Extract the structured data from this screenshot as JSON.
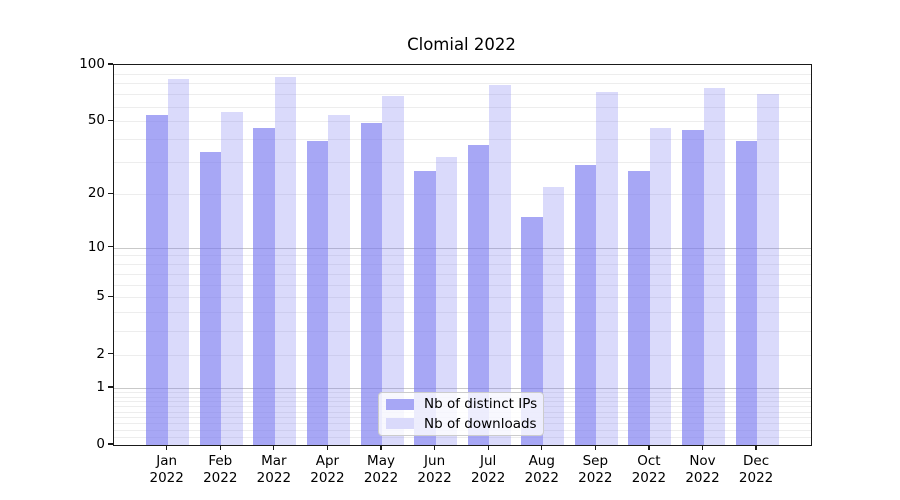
{
  "title": "Clomial 2022",
  "colors": {
    "bar_distinct_ips_solid": "#a7a7f5",
    "bar_downloads_solid": "#dadafb",
    "bar_base_rgba_dark": "rgba(120,120,240,0.65)",
    "bar_base_rgba_light": "rgba(120,120,240,0.27)",
    "grid_minor": "#ededed",
    "grid_major": "#c9c9c9",
    "axis": "#1a1a1a"
  },
  "legend": {
    "position": "lower center",
    "items": [
      {
        "label": "Nb of distinct IPs",
        "swatch": "#a7a7f5"
      },
      {
        "label": "Nb of downloads",
        "swatch": "#dadafb"
      }
    ]
  },
  "chart_data": {
    "type": "bar",
    "title": "Clomial 2022",
    "xlabel": "",
    "ylabel": "",
    "scale": "log1p",
    "ylim": [
      0,
      100
    ],
    "grid": "on",
    "categories": [
      "Jan",
      "Feb",
      "Mar",
      "Apr",
      "May",
      "Jun",
      "Jul",
      "Aug",
      "Sep",
      "Oct",
      "Nov",
      "Dec"
    ],
    "category_year": "2022",
    "series": [
      {
        "name": "Nb of distinct IPs",
        "color": "#a7a7f5",
        "values": [
          54,
          34,
          46,
          39,
          49,
          27,
          37,
          15,
          29,
          27,
          45,
          39
        ]
      },
      {
        "name": "Nb of downloads",
        "color": "#dadafb",
        "values": [
          84,
          56,
          86,
          54,
          68,
          32,
          78,
          22,
          72,
          46,
          75,
          70
        ]
      }
    ],
    "yticks": [
      100,
      50,
      20,
      10,
      5,
      2,
      1,
      0
    ],
    "grid_minor_values": [
      0.1,
      0.2,
      0.3,
      0.4,
      0.5,
      0.6,
      0.7,
      0.8,
      0.9,
      2,
      3,
      4,
      5,
      6,
      7,
      8,
      9,
      20,
      30,
      40,
      50,
      60,
      70,
      80,
      90
    ],
    "grid_major_values": [
      1,
      10
    ]
  }
}
